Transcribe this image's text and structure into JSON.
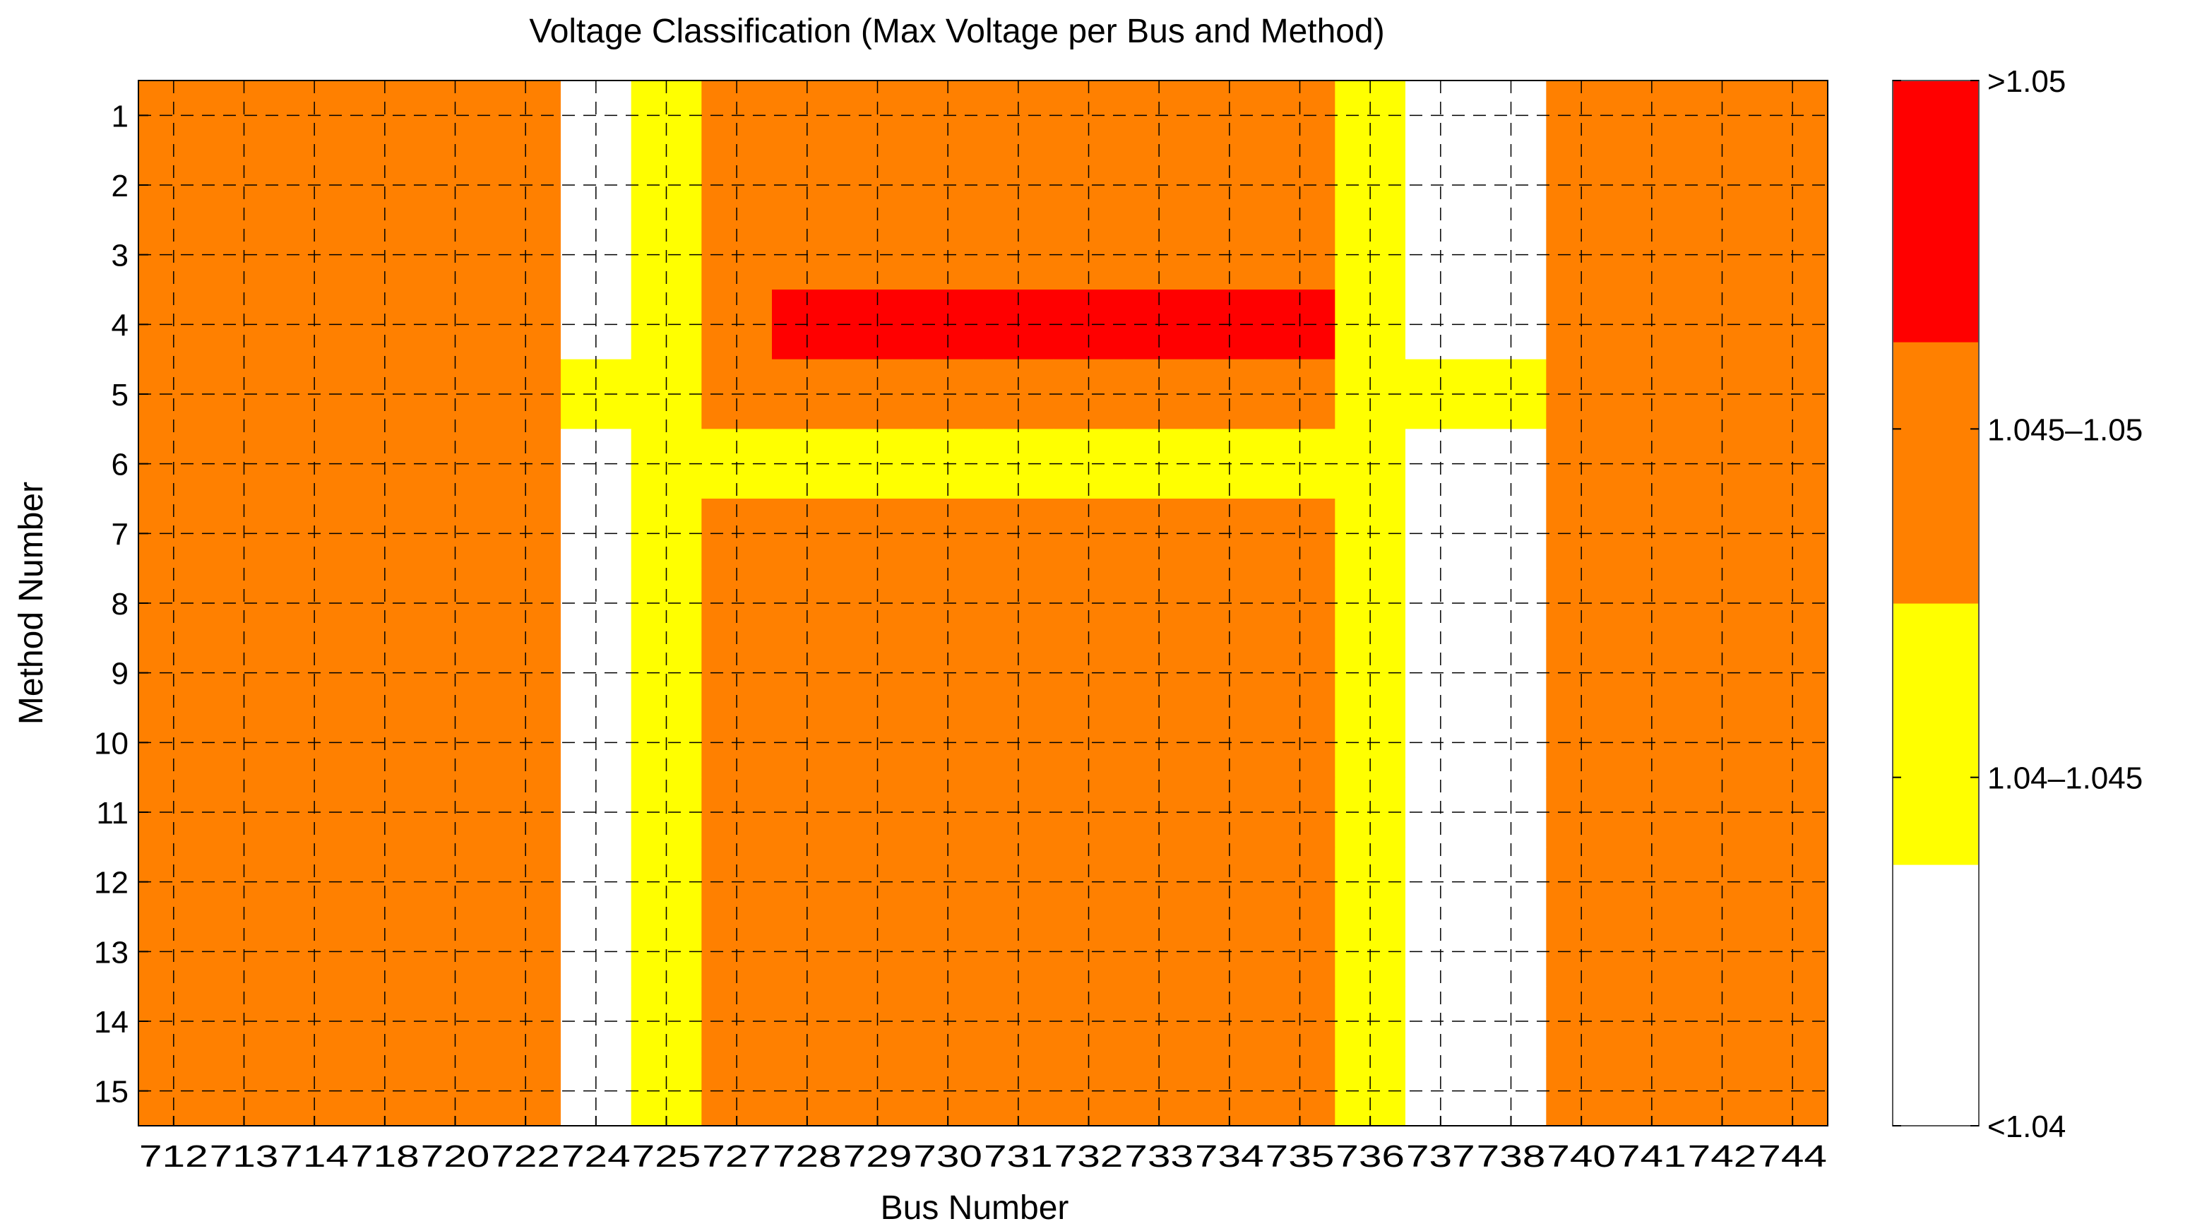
{
  "chart_data": {
    "type": "heatmap",
    "title": "Voltage Classification (Max Voltage per Bus and Method)",
    "xlabel": "Bus Number",
    "ylabel": "Method Number",
    "x_categories": [
      "712",
      "713",
      "714",
      "718",
      "720",
      "722",
      "724",
      "725",
      "727",
      "728",
      "729",
      "730",
      "731",
      "732",
      "733",
      "734",
      "735",
      "736",
      "737",
      "738",
      "740",
      "741",
      "742",
      "744"
    ],
    "y_categories": [
      "1",
      "2",
      "3",
      "4",
      "5",
      "6",
      "7",
      "8",
      "9",
      "10",
      "11",
      "12",
      "13",
      "14",
      "15"
    ],
    "classes": [
      "<1.04",
      "1.04–1.045",
      "1.045–1.05",
      ">1.05"
    ],
    "class_colors": [
      "#ffffff",
      "#ffff00",
      "#ff8000",
      "#ff0000"
    ],
    "colorbar_ticks": [
      ">1.05",
      "1.045–1.05",
      "1.04–1.045",
      "<1.04"
    ],
    "values": [
      [
        2,
        2,
        2,
        2,
        2,
        2,
        0,
        1,
        2,
        2,
        2,
        2,
        2,
        2,
        2,
        2,
        2,
        1,
        0,
        0,
        2,
        2,
        2,
        2
      ],
      [
        2,
        2,
        2,
        2,
        2,
        2,
        0,
        1,
        2,
        2,
        2,
        2,
        2,
        2,
        2,
        2,
        2,
        1,
        0,
        0,
        2,
        2,
        2,
        2
      ],
      [
        2,
        2,
        2,
        2,
        2,
        2,
        0,
        1,
        2,
        2,
        2,
        2,
        2,
        2,
        2,
        2,
        2,
        1,
        0,
        0,
        2,
        2,
        2,
        2
      ],
      [
        2,
        2,
        2,
        2,
        2,
        2,
        0,
        1,
        2,
        3,
        3,
        3,
        3,
        3,
        3,
        3,
        3,
        1,
        0,
        0,
        2,
        2,
        2,
        2
      ],
      [
        2,
        2,
        2,
        2,
        2,
        2,
        1,
        1,
        2,
        2,
        2,
        2,
        2,
        2,
        2,
        2,
        2,
        1,
        1,
        1,
        2,
        2,
        2,
        2
      ],
      [
        2,
        2,
        2,
        2,
        2,
        2,
        0,
        1,
        1,
        1,
        1,
        1,
        1,
        1,
        1,
        1,
        1,
        1,
        0,
        0,
        2,
        2,
        2,
        2
      ],
      [
        2,
        2,
        2,
        2,
        2,
        2,
        0,
        1,
        2,
        2,
        2,
        2,
        2,
        2,
        2,
        2,
        2,
        1,
        0,
        0,
        2,
        2,
        2,
        2
      ],
      [
        2,
        2,
        2,
        2,
        2,
        2,
        0,
        1,
        2,
        2,
        2,
        2,
        2,
        2,
        2,
        2,
        2,
        1,
        0,
        0,
        2,
        2,
        2,
        2
      ],
      [
        2,
        2,
        2,
        2,
        2,
        2,
        0,
        1,
        2,
        2,
        2,
        2,
        2,
        2,
        2,
        2,
        2,
        1,
        0,
        0,
        2,
        2,
        2,
        2
      ],
      [
        2,
        2,
        2,
        2,
        2,
        2,
        0,
        1,
        2,
        2,
        2,
        2,
        2,
        2,
        2,
        2,
        2,
        1,
        0,
        0,
        2,
        2,
        2,
        2
      ],
      [
        2,
        2,
        2,
        2,
        2,
        2,
        0,
        1,
        2,
        2,
        2,
        2,
        2,
        2,
        2,
        2,
        2,
        1,
        0,
        0,
        2,
        2,
        2,
        2
      ],
      [
        2,
        2,
        2,
        2,
        2,
        2,
        0,
        1,
        2,
        2,
        2,
        2,
        2,
        2,
        2,
        2,
        2,
        1,
        0,
        0,
        2,
        2,
        2,
        2
      ],
      [
        2,
        2,
        2,
        2,
        2,
        2,
        0,
        1,
        2,
        2,
        2,
        2,
        2,
        2,
        2,
        2,
        2,
        1,
        0,
        0,
        2,
        2,
        2,
        2
      ],
      [
        2,
        2,
        2,
        2,
        2,
        2,
        0,
        1,
        2,
        2,
        2,
        2,
        2,
        2,
        2,
        2,
        2,
        1,
        0,
        0,
        2,
        2,
        2,
        2
      ],
      [
        2,
        2,
        2,
        2,
        2,
        2,
        0,
        1,
        2,
        2,
        2,
        2,
        2,
        2,
        2,
        2,
        2,
        1,
        0,
        0,
        2,
        2,
        2,
        2
      ]
    ],
    "grid": true
  }
}
